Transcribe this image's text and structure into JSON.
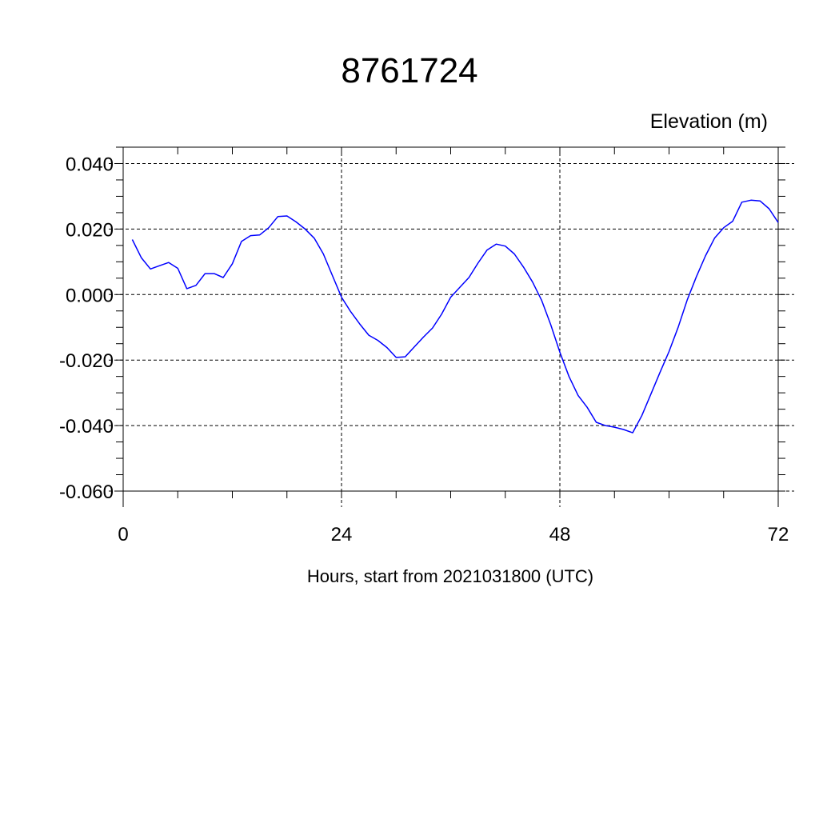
{
  "chart_data": {
    "type": "line",
    "title": "8761724",
    "ylabel": "Elevation (m)",
    "xlabel": "Hours, start from 2021031800 (UTC)",
    "xlim": [
      0,
      72
    ],
    "ylim": [
      -0.06,
      0.045
    ],
    "x_ticks": [
      0,
      24,
      48,
      72
    ],
    "x_tick_labels": [
      "0",
      "24",
      "48",
      "72"
    ],
    "y_ticks": [
      -0.06,
      -0.04,
      -0.02,
      0.0,
      0.02,
      0.04
    ],
    "y_tick_labels": [
      "-0.060",
      "-0.040",
      "-0.020",
      "0.000",
      "0.020",
      "0.040"
    ],
    "grid": true,
    "line_color": "#0000ff",
    "series": [
      {
        "x": [
          1,
          2,
          3,
          4,
          5,
          6,
          7,
          8,
          9,
          10,
          11,
          12,
          13,
          14,
          15,
          16,
          17,
          18,
          19,
          20,
          21,
          22,
          23,
          24,
          25,
          26,
          27,
          28,
          29,
          30,
          31,
          32,
          33,
          34,
          35,
          36,
          37,
          38,
          39,
          40,
          41,
          42,
          43,
          44,
          45,
          46,
          47,
          48,
          49,
          50,
          51,
          52,
          53,
          54,
          55,
          56,
          57,
          58,
          59,
          60,
          61,
          62,
          63,
          64,
          65,
          66,
          67,
          68,
          69,
          70,
          71,
          72
        ],
        "values": [
          0.0168,
          0.0112,
          0.0078,
          0.0088,
          0.0098,
          0.008,
          0.0018,
          0.0028,
          0.0064,
          0.0064,
          0.0052,
          0.0094,
          0.0162,
          0.018,
          0.0182,
          0.0204,
          0.0238,
          0.024,
          0.0222,
          0.02,
          0.0172,
          0.0124,
          0.0058,
          -0.0008,
          -0.0052,
          -0.009,
          -0.0124,
          -0.014,
          -0.0162,
          -0.0192,
          -0.019,
          -0.016,
          -0.013,
          -0.0102,
          -0.006,
          -0.0008,
          0.0022,
          0.0052,
          0.0096,
          0.0136,
          0.0154,
          0.0148,
          0.0124,
          0.0084,
          0.0038,
          -0.0018,
          -0.0092,
          -0.0176,
          -0.025,
          -0.0308,
          -0.0344,
          -0.039,
          -0.04,
          -0.0405,
          -0.0412,
          -0.0422,
          -0.037,
          -0.0304,
          -0.0238,
          -0.0174,
          -0.01,
          -0.0016,
          0.0054,
          0.0118,
          0.0172,
          0.0204,
          0.0224,
          0.0282,
          0.0288,
          0.0286,
          0.0262,
          0.022
        ]
      }
    ]
  }
}
